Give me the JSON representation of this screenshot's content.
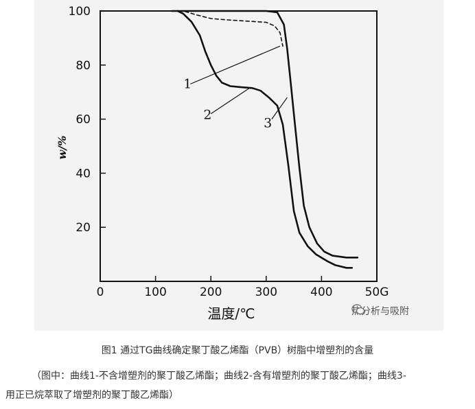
{
  "chart_data": {
    "type": "line",
    "title": "",
    "xlabel": "温度/℃",
    "ylabel": "w/%",
    "xlim": [
      0,
      500
    ],
    "ylim": [
      0,
      100
    ],
    "x_ticks": [
      "0",
      "100",
      "200",
      "300",
      "400",
      "50G"
    ],
    "y_ticks": [
      "100",
      "80",
      "60",
      "40",
      "20"
    ],
    "grid": false,
    "series": [
      {
        "name": "1",
        "style": "dashed",
        "points": [
          [
            120,
            100
          ],
          [
            150,
            100
          ],
          [
            175,
            98.5
          ],
          [
            200,
            97.2
          ],
          [
            230,
            96.7
          ],
          [
            270,
            96.2
          ],
          [
            300,
            95.8
          ],
          [
            315,
            94.5
          ],
          [
            325,
            92
          ],
          [
            330,
            87
          ]
        ]
      },
      {
        "name": "2",
        "style": "solid",
        "points": [
          [
            140,
            100
          ],
          [
            150,
            99
          ],
          [
            165,
            96
          ],
          [
            180,
            91
          ],
          [
            190,
            85
          ],
          [
            200,
            80
          ],
          [
            210,
            76
          ],
          [
            220,
            73.5
          ],
          [
            235,
            72.2
          ],
          [
            255,
            71.8
          ],
          [
            275,
            71.5
          ],
          [
            290,
            70.5
          ],
          [
            305,
            68
          ],
          [
            315,
            66
          ],
          [
            320,
            65
          ],
          [
            330,
            58
          ],
          [
            340,
            43
          ],
          [
            350,
            26
          ],
          [
            360,
            18
          ],
          [
            375,
            13
          ],
          [
            390,
            10
          ],
          [
            410,
            7.5
          ],
          [
            425,
            6
          ],
          [
            445,
            5
          ],
          [
            455,
            5
          ]
        ]
      },
      {
        "name": "3",
        "style": "solid",
        "points": [
          [
            130,
            100
          ],
          [
            200,
            100
          ],
          [
            250,
            100
          ],
          [
            300,
            100
          ],
          [
            320,
            99.5
          ],
          [
            332,
            95
          ],
          [
            338,
            86
          ],
          [
            344,
            74
          ],
          [
            352,
            58
          ],
          [
            360,
            42
          ],
          [
            368,
            28
          ],
          [
            378,
            20
          ],
          [
            392,
            14
          ],
          [
            405,
            11
          ],
          [
            420,
            9.5
          ],
          [
            445,
            8.8
          ],
          [
            465,
            8.8
          ]
        ]
      }
    ],
    "curve_labels": [
      "1",
      "2",
      "3"
    ]
  },
  "caption": "图1   通过TG曲线确定聚丁酸乙烯酯（PVB）树脂中增塑剂的含量",
  "note_line1": "（图中：曲线1-不含增塑剂的聚丁酸乙烯酯；曲线2-含有增塑剂的聚丁酸乙烯酯；曲线3-",
  "note_line2": "用正已烷萃取了增塑剂的聚丁酸乙烯酯）",
  "watermark": "热分析与吸附",
  "colors": {
    "line": "#111111",
    "panel": "#f3f3f3",
    "text": "#333333"
  }
}
